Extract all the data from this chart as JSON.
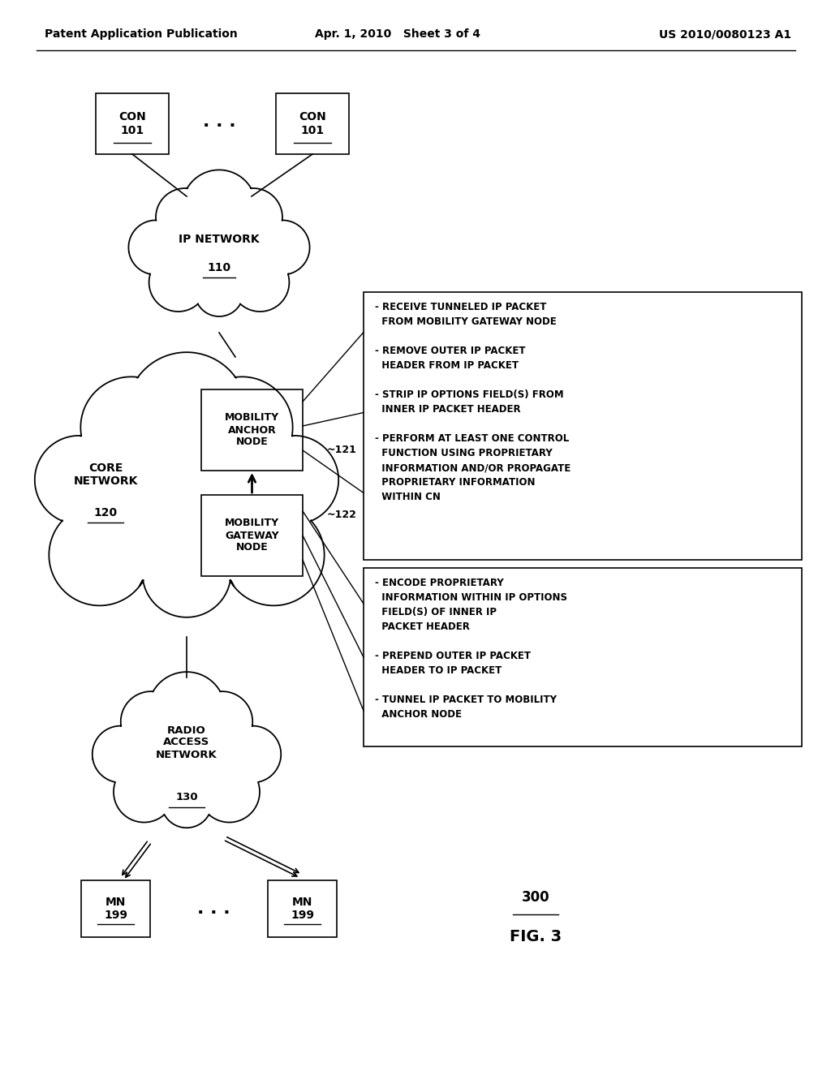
{
  "header_left": "Patent Application Publication",
  "header_mid": "Apr. 1, 2010   Sheet 3 of 4",
  "header_right": "US 2010/0080123 A1",
  "fig_label": "300",
  "fig_name": "FIG. 3",
  "bg_color": "#ffffff",
  "text_color": "#000000",
  "box1_lines": [
    "- RECEIVE TUNNELED IP PACKET",
    "  FROM MOBILITY GATEWAY NODE",
    "",
    "- REMOVE OUTER IP PACKET",
    "  HEADER FROM IP PACKET",
    "",
    "- STRIP IP OPTIONS FIELD(S) FROM",
    "  INNER IP PACKET HEADER",
    "",
    "- PERFORM AT LEAST ONE CONTROL",
    "  FUNCTION USING PROPRIETARY",
    "  INFORMATION AND/OR PROPAGATE",
    "  PROPRIETARY INFORMATION",
    "  WITHIN CN"
  ],
  "box2_lines": [
    "- ENCODE PROPRIETARY",
    "  INFORMATION WITHIN IP OPTIONS",
    "  FIELD(S) OF INNER IP",
    "  PACKET HEADER",
    "",
    "- PREPEND OUTER IP PACKET",
    "  HEADER TO IP PACKET",
    "",
    "- TUNNEL IP PACKET TO MOBILITY",
    "  ANCHOR NODE"
  ]
}
